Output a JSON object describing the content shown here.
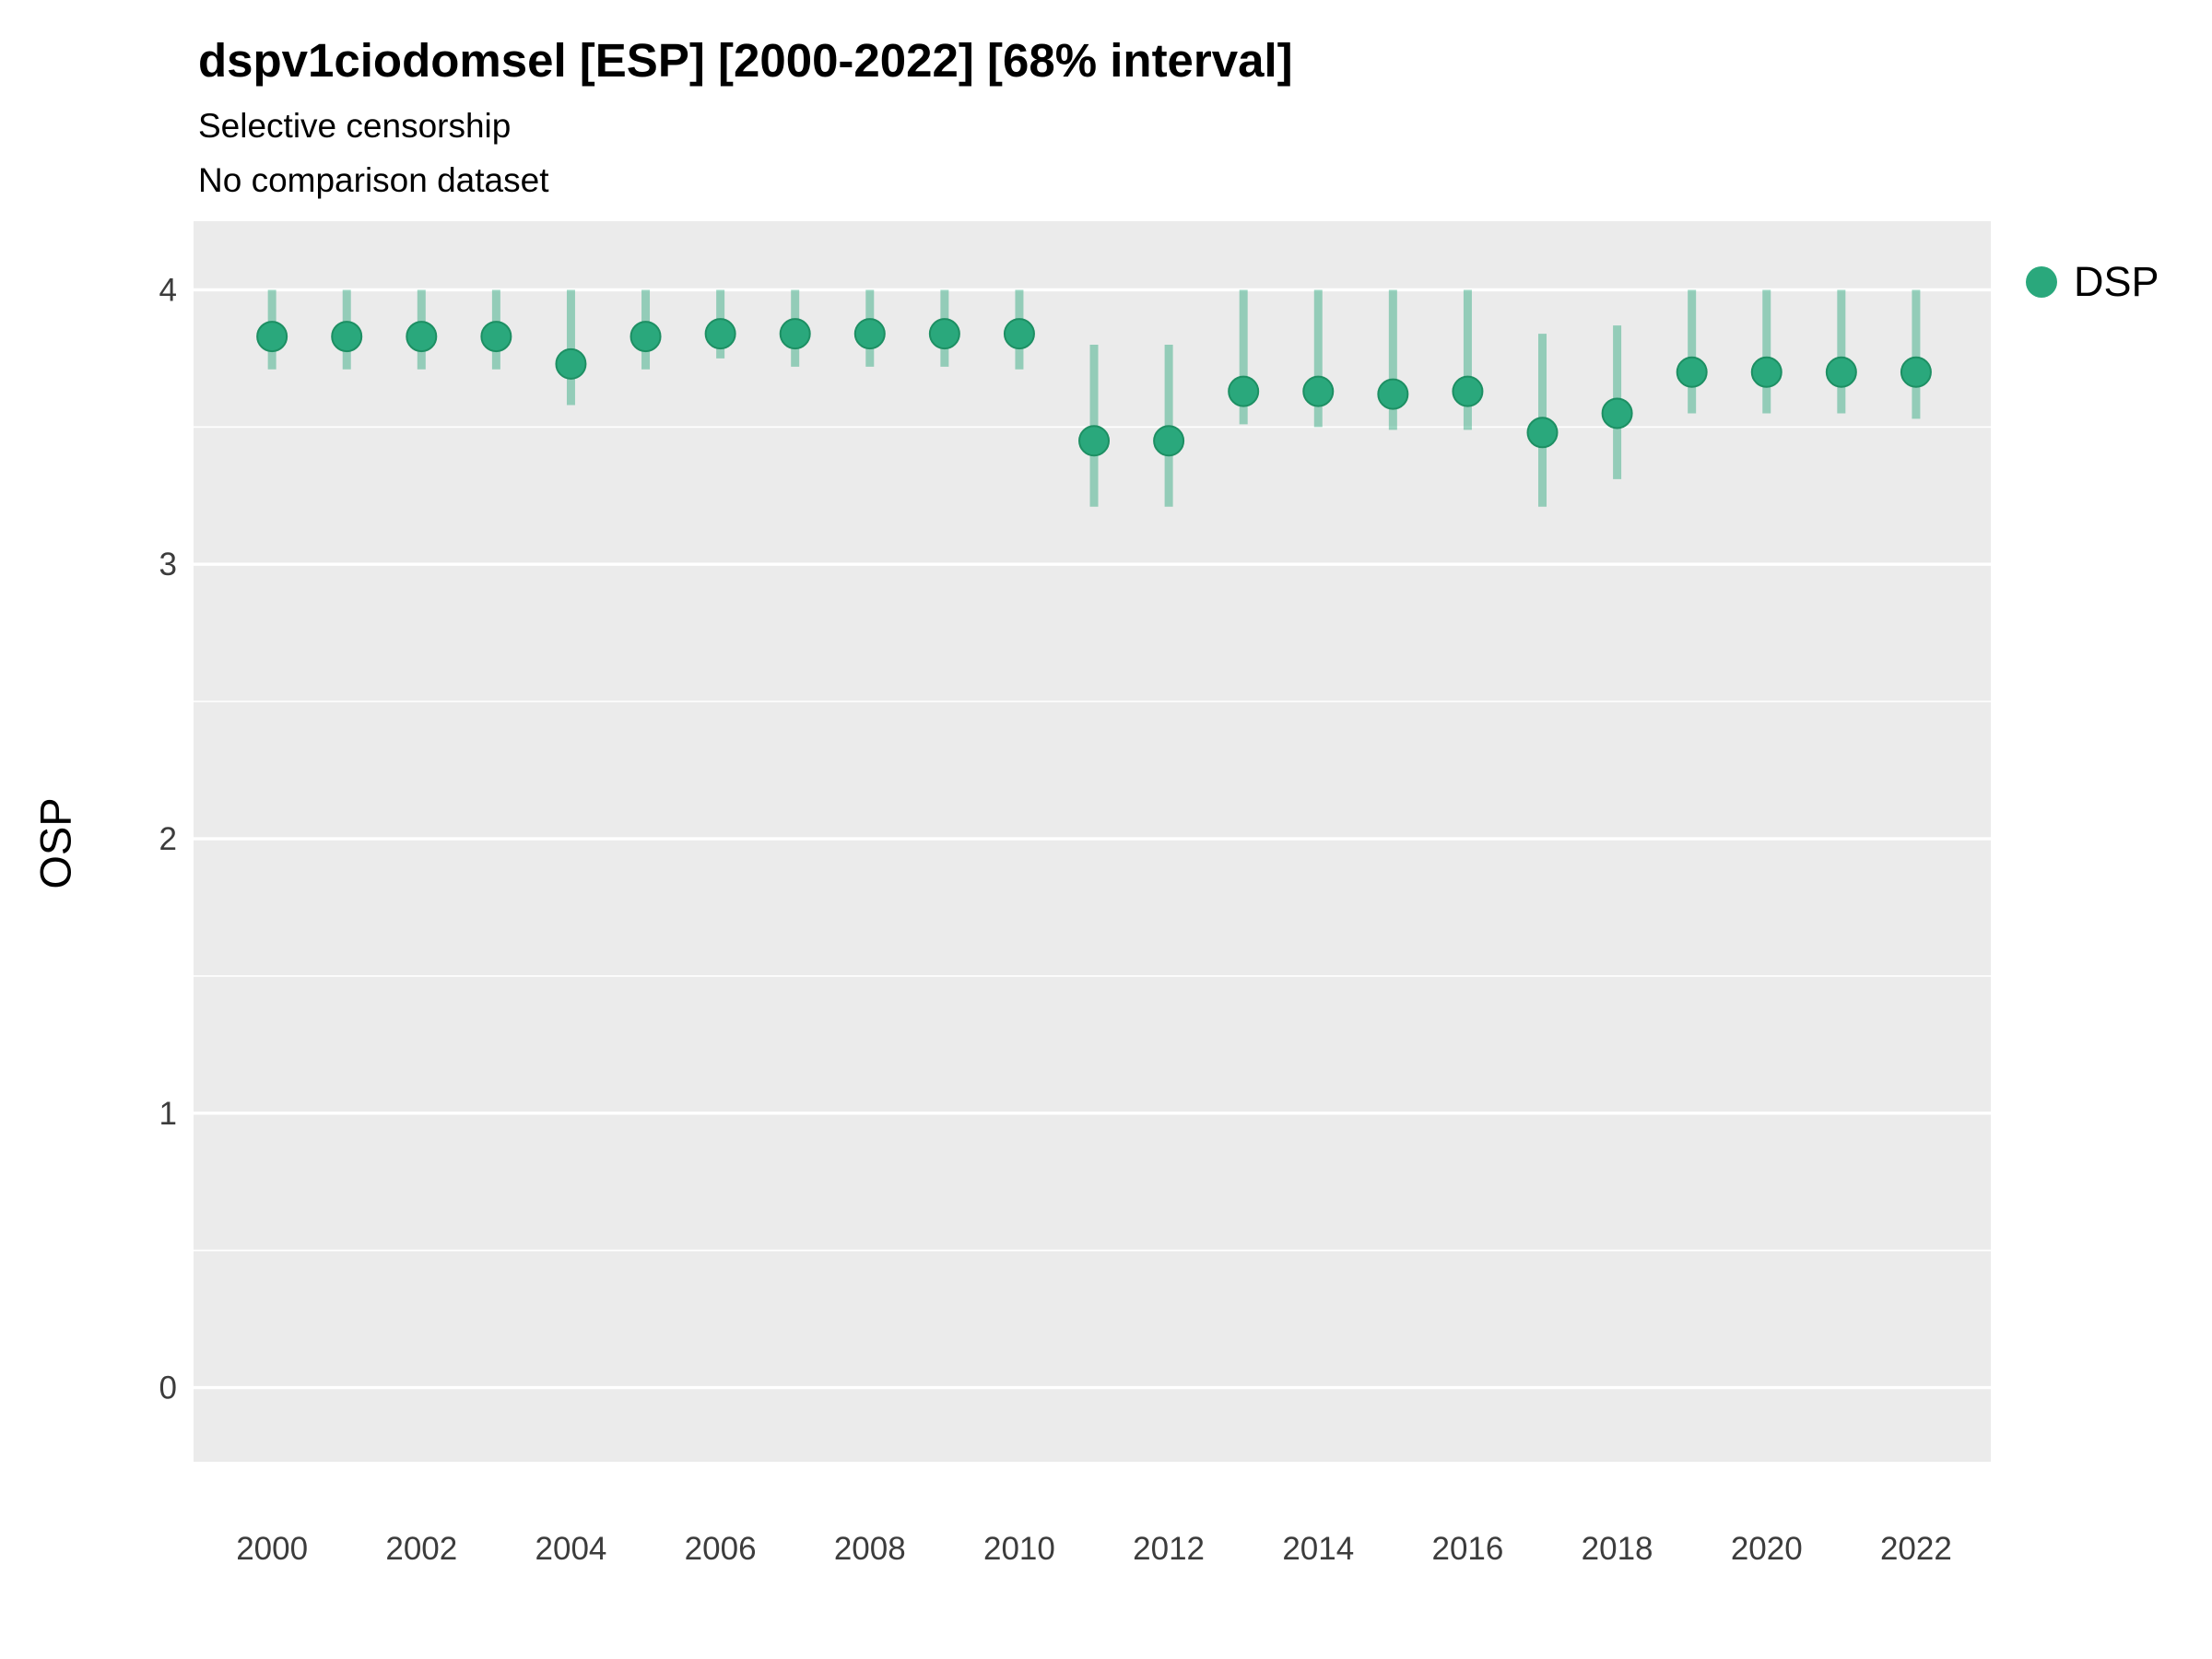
{
  "page": {
    "title": "dspv1ciodomsel [ESP] [2000-2022] [68% interval]",
    "subtitle": "Selective censorship",
    "note": "No comparison dataset"
  },
  "chart_data": {
    "type": "pointrange",
    "title": "dspv1ciodomsel [ESP] [2000-2022] [68% interval]",
    "subtitle": "Selective censorship",
    "note": "No comparison dataset",
    "xlabel": "",
    "ylabel": "OSP",
    "series_name": "DSP",
    "interval_label": "68% interval",
    "legend_position": "right",
    "grid": "horizontal-only",
    "panel_bg": "#ebebeb",
    "grid_color": "#ffffff",
    "point_color": "#2aa87c",
    "point_stroke": "#1d8f63",
    "bar_opacity": 0.45,
    "tick_color": "#3c3c3c",
    "ylim": [
      -0.27,
      4.25
    ],
    "xlim": [
      1998.95,
      2023.0
    ],
    "yticks": [
      0,
      1,
      2,
      3,
      4
    ],
    "yticks_minor": [
      0.5,
      1.5,
      2.5,
      3.5
    ],
    "xticks": [
      2000,
      2002,
      2004,
      2006,
      2008,
      2010,
      2012,
      2014,
      2016,
      2018,
      2020,
      2022
    ],
    "points": [
      {
        "x": 2000,
        "y": 3.83,
        "lo": 3.71,
        "hi": 4.0
      },
      {
        "x": 2001,
        "y": 3.83,
        "lo": 3.71,
        "hi": 4.0
      },
      {
        "x": 2002,
        "y": 3.83,
        "lo": 3.71,
        "hi": 4.0
      },
      {
        "x": 2003,
        "y": 3.83,
        "lo": 3.71,
        "hi": 4.0
      },
      {
        "x": 2004,
        "y": 3.73,
        "lo": 3.58,
        "hi": 4.0
      },
      {
        "x": 2005,
        "y": 3.83,
        "lo": 3.71,
        "hi": 4.0
      },
      {
        "x": 2006,
        "y": 3.84,
        "lo": 3.75,
        "hi": 4.0
      },
      {
        "x": 2007,
        "y": 3.84,
        "lo": 3.72,
        "hi": 4.0
      },
      {
        "x": 2008,
        "y": 3.84,
        "lo": 3.72,
        "hi": 4.0
      },
      {
        "x": 2009,
        "y": 3.84,
        "lo": 3.72,
        "hi": 4.0
      },
      {
        "x": 2010,
        "y": 3.84,
        "lo": 3.71,
        "hi": 4.0
      },
      {
        "x": 2011,
        "y": 3.45,
        "lo": 3.21,
        "hi": 3.8
      },
      {
        "x": 2012,
        "y": 3.45,
        "lo": 3.21,
        "hi": 3.8
      },
      {
        "x": 2013,
        "y": 3.63,
        "lo": 3.51,
        "hi": 4.0
      },
      {
        "x": 2014,
        "y": 3.63,
        "lo": 3.5,
        "hi": 4.0
      },
      {
        "x": 2015,
        "y": 3.62,
        "lo": 3.49,
        "hi": 4.0
      },
      {
        "x": 2016,
        "y": 3.63,
        "lo": 3.49,
        "hi": 4.0
      },
      {
        "x": 2017,
        "y": 3.48,
        "lo": 3.21,
        "hi": 3.84
      },
      {
        "x": 2018,
        "y": 3.55,
        "lo": 3.31,
        "hi": 3.87
      },
      {
        "x": 2019,
        "y": 3.7,
        "lo": 3.55,
        "hi": 4.0
      },
      {
        "x": 2020,
        "y": 3.7,
        "lo": 3.55,
        "hi": 4.0
      },
      {
        "x": 2021,
        "y": 3.7,
        "lo": 3.55,
        "hi": 4.0
      },
      {
        "x": 2022,
        "y": 3.7,
        "lo": 3.53,
        "hi": 4.0
      }
    ]
  }
}
